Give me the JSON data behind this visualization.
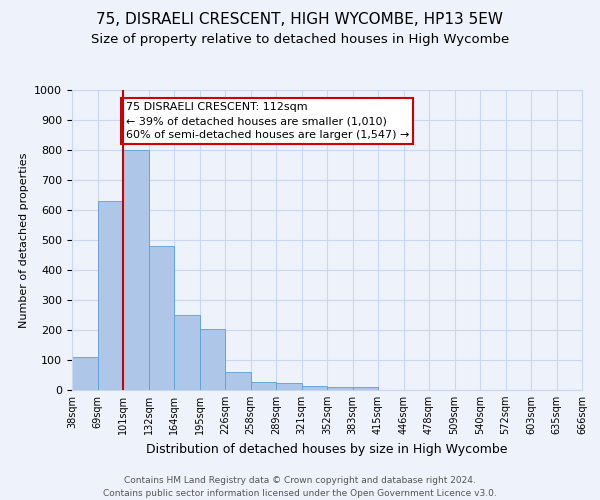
{
  "title": "75, DISRAELI CRESCENT, HIGH WYCOMBE, HP13 5EW",
  "subtitle": "Size of property relative to detached houses in High Wycombe",
  "xlabel": "Distribution of detached houses by size in High Wycombe",
  "ylabel": "Number of detached properties",
  "bar_values": [
    110,
    630,
    800,
    480,
    250,
    205,
    60,
    28,
    22,
    15,
    10,
    10,
    0,
    0,
    0,
    0,
    0,
    0,
    0,
    0
  ],
  "bar_labels": [
    "38sqm",
    "69sqm",
    "101sqm",
    "132sqm",
    "164sqm",
    "195sqm",
    "226sqm",
    "258sqm",
    "289sqm",
    "321sqm",
    "352sqm",
    "383sqm",
    "415sqm",
    "446sqm",
    "478sqm",
    "509sqm",
    "540sqm",
    "572sqm",
    "603sqm",
    "635sqm",
    "666sqm"
  ],
  "bar_color": "#aec6e8",
  "bar_edge_color": "#5a9fd4",
  "vline_x": 2,
  "vline_color": "#cc0000",
  "annotation_text": "75 DISRAELI CRESCENT: 112sqm\n← 39% of detached houses are smaller (1,010)\n60% of semi-detached houses are larger (1,547) →",
  "annotation_box_color": "#ffffff",
  "annotation_box_edge": "#cc0000",
  "ylim": [
    0,
    1000
  ],
  "yticks": [
    0,
    100,
    200,
    300,
    400,
    500,
    600,
    700,
    800,
    900,
    1000
  ],
  "footer": "Contains HM Land Registry data © Crown copyright and database right 2024.\nContains public sector information licensed under the Open Government Licence v3.0.",
  "background_color": "#eef2fa",
  "grid_color": "#c8d8f0",
  "title_fontsize": 11,
  "subtitle_fontsize": 9.5,
  "annotation_fontsize": 8,
  "ylabel_fontsize": 8,
  "xlabel_fontsize": 9,
  "footer_fontsize": 6.5
}
